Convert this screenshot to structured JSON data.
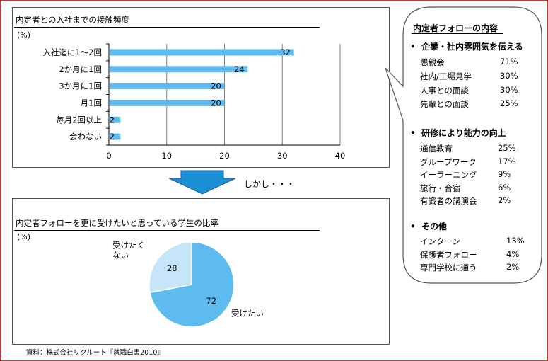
{
  "bar_panel": {
    "title": "内定者との入社までの接触頻度",
    "unit": "(%)"
  },
  "pie_panel": {
    "title": "内定者フォローを更に受けたいと思っている学生の比率",
    "unit": "(%)"
  },
  "chart_data": [
    {
      "type": "bar",
      "orientation": "horizontal",
      "title": "内定者との入社までの接触頻度",
      "unit": "(%)",
      "categories": [
        "入社迄に1～2回",
        "2か月に1回",
        "3か月に1回",
        "月1回",
        "毎月2回以上",
        "会わない"
      ],
      "values": [
        32,
        24,
        20,
        20,
        2,
        2
      ],
      "xlim": [
        0,
        40
      ],
      "xticks": [
        0,
        10,
        20,
        30,
        40
      ],
      "grid": true,
      "bar_color": "#5ebbef"
    },
    {
      "type": "pie",
      "title": "内定者フォローを更に受けたいと思っている学生の比率",
      "unit": "(%)",
      "slices": [
        {
          "label": "受けたい",
          "value": 72,
          "color": "#5ebbef"
        },
        {
          "label": "受けたく\nない",
          "value": 28,
          "color": "#c6e5f8"
        }
      ]
    }
  ],
  "arrow_text": "しかし・・・",
  "callout": {
    "title": "内定者フォローの内容",
    "bullet": "•",
    "sections": [
      {
        "heading": "企業・社内雰囲気を伝える",
        "items": [
          {
            "label": "懇親会",
            "value": "71%"
          },
          {
            "label": "社内/工場見学",
            "value": "30%"
          },
          {
            "label": "人事との面談",
            "value": "30%"
          },
          {
            "label": "先輩との面談",
            "value": "25%"
          }
        ]
      },
      {
        "heading": "研修により能力の向上",
        "items": [
          {
            "label": "通信教育",
            "value": "25%"
          },
          {
            "label": "グループワーク",
            "value": "17%"
          },
          {
            "label": "イーラーニング",
            "value": "9%"
          },
          {
            "label": "旅行・合宿",
            "value": "6%"
          },
          {
            "label": "有識者の講演会",
            "value": "2%"
          }
        ]
      },
      {
        "heading": "その他",
        "items": [
          {
            "label": "インターン",
            "value": "13%"
          },
          {
            "label": "保護者フォロー",
            "value": "4%"
          },
          {
            "label": "専門学校に通う",
            "value": "2%"
          }
        ]
      }
    ]
  },
  "source": "資料：株式会社リクルート『就職白書2010』"
}
